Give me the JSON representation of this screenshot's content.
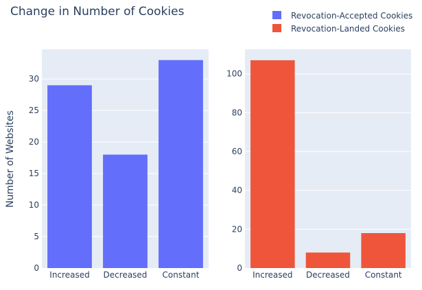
{
  "title": "Change in Number of Cookies",
  "ylabel": "Number of Websites",
  "legend": {
    "position": "top-right",
    "items": [
      {
        "label": "Revocation-Accepted Cookies",
        "color": "#636efa"
      },
      {
        "label": "Revocation-Landed Cookies",
        "color": "#ef553b"
      }
    ]
  },
  "colors": {
    "plot_bg": "#e5ecf6",
    "grid": "#ffffff",
    "text": "#2a3f5f"
  },
  "chart_data": [
    {
      "type": "bar",
      "categories": [
        "Increased",
        "Decreased",
        "Constant"
      ],
      "series": [
        {
          "name": "Revocation-Accepted Cookies",
          "values": [
            29,
            18,
            33
          ]
        }
      ],
      "ylim": [
        0,
        34.7
      ],
      "yticks": [
        0,
        5,
        10,
        15,
        20,
        25,
        30
      ],
      "ylabel": "Number of Websites",
      "grid": true,
      "color": "#636efa"
    },
    {
      "type": "bar",
      "categories": [
        "Increased",
        "Decreased",
        "Constant"
      ],
      "series": [
        {
          "name": "Revocation-Landed Cookies",
          "values": [
            107,
            8,
            18
          ]
        }
      ],
      "ylim": [
        0,
        112.6
      ],
      "yticks": [
        0,
        20,
        40,
        60,
        80,
        100
      ],
      "grid": true,
      "color": "#ef553b"
    }
  ]
}
